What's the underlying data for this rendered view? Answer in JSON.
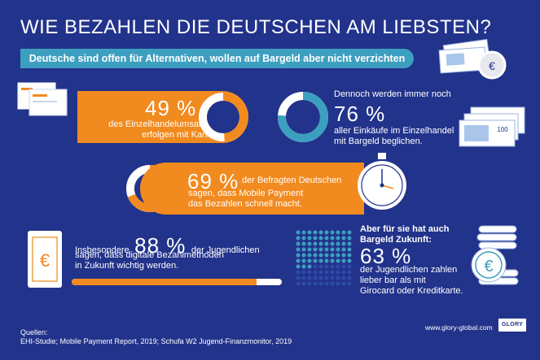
{
  "title": "WIE BEZAHLEN DIE DEUTSCHEN AM LIEBSTEN?",
  "subtitle": "Deutsche sind offen für Alternativen, wollen auf Bargeld aber nicht verzichten",
  "stat_card": {
    "value": "49 %",
    "line1": "des Einzelhandelumsatzes",
    "line2": "erfolgen mit Karte.",
    "fraction": 0.49
  },
  "stat_cash": {
    "intro": "Dennoch werden immer noch",
    "value": "76 %",
    "line1": "aller Einkäufe im Einzelhandel",
    "line2": "mit Bargeld beglichen.",
    "fraction": 0.76
  },
  "stat_mobile": {
    "value": "69 %",
    "line1": "der Befragten Deutschen",
    "line2": "sagen, dass Mobile Payment",
    "line3": "das Bezahlen schnell macht.",
    "fraction": 0.69
  },
  "stat_youth_digital": {
    "prefix": "Insbesondere",
    "value": "88 %",
    "suffix": "der Jugendlichen",
    "line2": "sagen, dass digitale Bezahlmethoden",
    "line3": "in Zukunft wichtig werden.",
    "fraction": 0.88
  },
  "stat_youth_cash": {
    "line1": "Aber für sie hat auch",
    "line2": "Bargeld Zukunft:",
    "value": "63 %",
    "line3": "der Jugendlichen zahlen",
    "line4": "lieber bar als mit",
    "line5": "Girocard oder Kreditkarte.",
    "fraction": 0.63
  },
  "banknote_denomination": "100",
  "currency_symbol": "€",
  "sources": {
    "label": "Quellen:",
    "line": "EHI-Studie; Mobile Payment Report, 2019; Schufa W2 Jugend-Finanzmonitor, 2019"
  },
  "website": "www.glory-global.com",
  "logo_text": "GLORY",
  "colors": {
    "background": "#22338b",
    "orange": "#f18a1f",
    "teal": "#3d9fbf",
    "light_blue": "#a9c6ea",
    "white": "#ffffff"
  },
  "icons": [
    "cash-and-coin-icon",
    "cards-icon",
    "banknotes-icon",
    "stopwatch-icon",
    "euro-card-icon",
    "coin-stack-icon"
  ]
}
